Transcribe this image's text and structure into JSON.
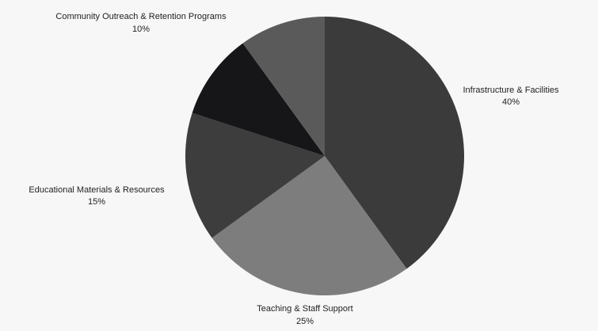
{
  "chart_data": {
    "type": "pie",
    "slices": [
      {
        "label": "Infrastructure & Facilities",
        "value": 40,
        "percent_label": "40%",
        "color": "#3b3b3c"
      },
      {
        "label": "Teaching & Staff Support",
        "value": 25,
        "percent_label": "25%",
        "color": "#7d7d7d"
      },
      {
        "label": "Educational Materials & Resources",
        "value": 15,
        "percent_label": "15%",
        "color": "#3d3d3e"
      },
      {
        "label": "Community Outreach & Retention Programs",
        "value": 10,
        "percent_label": "10%",
        "color": "#161619"
      },
      {
        "label": "",
        "value": 10,
        "percent_label": "",
        "color": "#5a5a5b"
      }
    ],
    "start": "12 o'clock",
    "direction": "clockwise"
  },
  "colors": {
    "background": "#f7f7f7",
    "label_text": "#222222"
  }
}
